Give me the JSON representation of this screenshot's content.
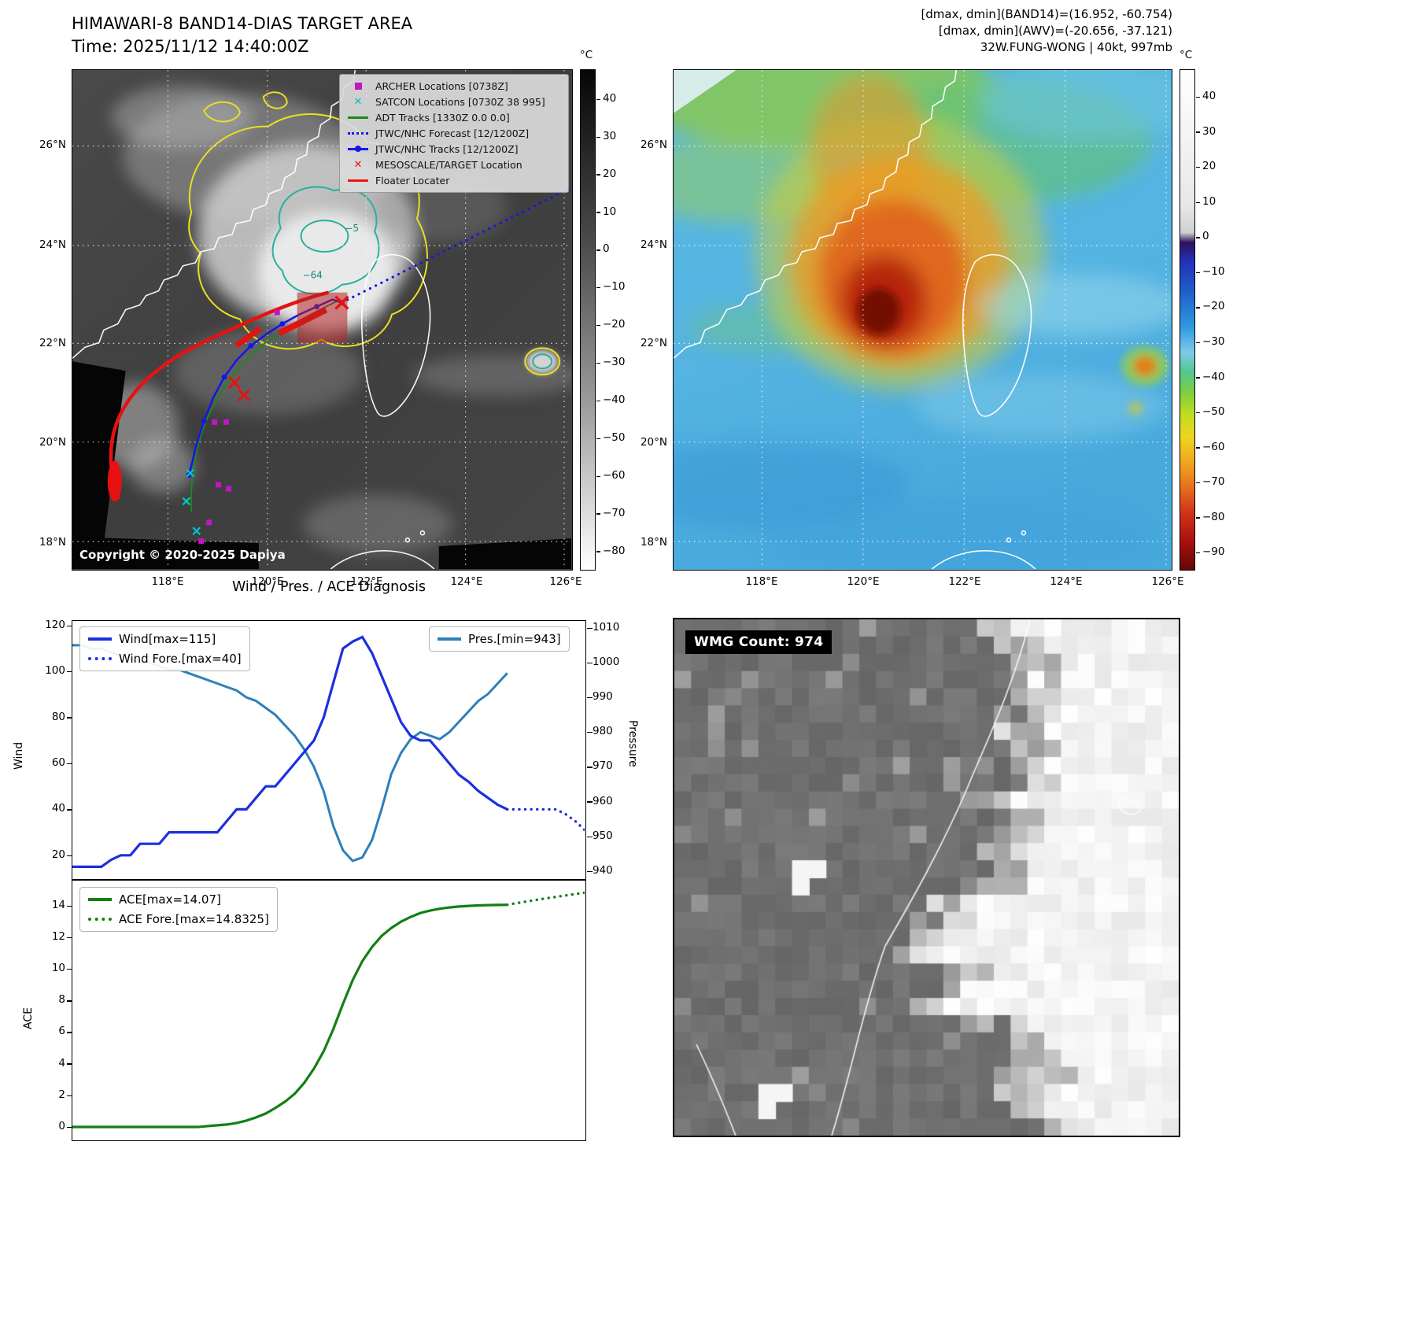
{
  "header": {
    "left_title": "HIMAWARI-8 BAND14-DIAS TARGET AREA",
    "left_subtitle": "Time: 2025/11/12 14:40:00Z",
    "right_line1": "[dmax, dmin](BAND14)=(16.952, -60.754)",
    "right_line2": "[dmax, dmin](AWV)=(-20.656, -37.121)",
    "right_line3": "32W.FUNG-WONG | 40kt, 997mb"
  },
  "band14_panel": {
    "legend": [
      {
        "label": "ARCHER Locations [0738Z]",
        "marker": "square",
        "color": "#c316c3"
      },
      {
        "label": "SATCON Locations [0730Z 38 995]",
        "marker": "x",
        "color": "#00bcbc"
      },
      {
        "label": "ADT Tracks [1330Z 0.0 0.0]",
        "marker": "line",
        "color": "#1a8a1a"
      },
      {
        "label": "JTWC/NHC Forecast [12/1200Z]",
        "marker": "dotted",
        "color": "#1515e8"
      },
      {
        "label": "JTWC/NHC Tracks [12/1200Z]",
        "marker": "line-dot",
        "color": "#1515e8"
      },
      {
        "label": "MESOSCALE/TARGET Location",
        "marker": "x",
        "color": "#e81515"
      },
      {
        "label": "Floater Locater",
        "marker": "line",
        "color": "#e81515"
      }
    ],
    "copyright": "Copyright © 2020-2025 Dapiya",
    "contour_label_1": "−64",
    "contour_label_2": "−5",
    "lat_ticks": [
      "26°N",
      "24°N",
      "22°N",
      "20°N",
      "18°N"
    ],
    "lon_ticks": [
      "118°E",
      "120°E",
      "122°E",
      "124°E",
      "126°E"
    ],
    "colorbar": {
      "unit": "°C",
      "range": [
        48,
        -85
      ],
      "ticks": [
        40,
        30,
        20,
        10,
        0,
        -10,
        -20,
        -30,
        -40,
        -50,
        -60,
        -70,
        -80
      ],
      "stops": [
        [
          "#060606",
          0
        ],
        [
          "#4a4a4a",
          0.34
        ],
        [
          "#9c9c9c",
          0.67
        ],
        [
          "#ffffff",
          1
        ]
      ]
    }
  },
  "awv_panel": {
    "lat_ticks": [
      "26°N",
      "24°N",
      "22°N",
      "20°N",
      "18°N"
    ],
    "lon_ticks": [
      "118°E",
      "120°E",
      "122°E",
      "124°E",
      "126°E"
    ],
    "colorbar": {
      "unit": "°C",
      "range": [
        48,
        -95
      ],
      "ticks": [
        40,
        30,
        20,
        10,
        0,
        -10,
        -20,
        -30,
        -40,
        -50,
        -60,
        -70,
        -80,
        -90
      ],
      "stops": [
        [
          "#ffffff",
          0
        ],
        [
          "#e8e8e8",
          0.27
        ],
        [
          "#d0d0d0",
          0.325
        ],
        [
          "#2e1060",
          0.345
        ],
        [
          "#2233bb",
          0.385
        ],
        [
          "#1f64cc",
          0.45
        ],
        [
          "#2f9ade",
          0.515
        ],
        [
          "#7ecbe9",
          0.565
        ],
        [
          "#52c68c",
          0.605
        ],
        [
          "#7ccf3f",
          0.645
        ],
        [
          "#c2dd20",
          0.69
        ],
        [
          "#eed51e",
          0.735
        ],
        [
          "#f0a61e",
          0.785
        ],
        [
          "#e5701c",
          0.835
        ],
        [
          "#d23418",
          0.885
        ],
        [
          "#a60f0f",
          0.945
        ],
        [
          "#640707",
          1
        ]
      ]
    }
  },
  "wmg_panel": {
    "count_label": "WMG Count: 974"
  },
  "chart_data": [
    {
      "type": "line",
      "title": "Wind / Pres. / ACE Diagnosis",
      "left_axis": {
        "label": "Wind",
        "ticks": [
          20,
          40,
          60,
          80,
          100,
          120
        ],
        "range": [
          10,
          122
        ]
      },
      "right_axis": {
        "label": "Pressure",
        "ticks": [
          940,
          950,
          960,
          970,
          980,
          990,
          1000,
          1010
        ],
        "range": [
          938,
          1012
        ]
      },
      "legend_position": "upper-left and upper-right",
      "series": [
        {
          "name": "Wind[max=115]",
          "axis": "left",
          "style": "solid",
          "color": "#1c2fe0",
          "values": [
            15,
            15,
            15,
            15,
            18,
            20,
            20,
            25,
            25,
            25,
            30,
            30,
            30,
            30,
            30,
            30,
            35,
            40,
            40,
            45,
            50,
            50,
            55,
            60,
            65,
            70,
            80,
            95,
            110,
            113,
            115,
            108,
            98,
            88,
            78,
            72,
            70,
            70,
            65,
            60,
            55,
            52,
            48,
            45,
            42,
            40
          ]
        },
        {
          "name": "Wind Fore.[max=40]",
          "axis": "left",
          "style": "dotted",
          "color": "#1c2fe0",
          "values": [
            40,
            40,
            40,
            40,
            40,
            40,
            38,
            35,
            31
          ]
        },
        {
          "name": "Pres.[min=943]",
          "axis": "right",
          "style": "solid",
          "color": "#2e7fb8",
          "values": [
            1005,
            1005,
            1004,
            1004,
            1003,
            1002,
            1001,
            1000,
            1000,
            999,
            998,
            998,
            997,
            996,
            995,
            994,
            993,
            992,
            990,
            989,
            987,
            985,
            982,
            979,
            975,
            970,
            963,
            953,
            946,
            943,
            944,
            949,
            958,
            968,
            974,
            978,
            980,
            979,
            978,
            980,
            983,
            986,
            989,
            991,
            994,
            997
          ]
        }
      ]
    },
    {
      "type": "line",
      "left_axis": {
        "label": "ACE",
        "ticks": [
          0,
          2,
          4,
          6,
          8,
          10,
          12,
          14
        ],
        "range": [
          -0.8,
          15.6
        ]
      },
      "legend_position": "upper-left",
      "series": [
        {
          "name": "ACE[max=14.07]",
          "style": "solid",
          "color": "#128012",
          "values": [
            0,
            0,
            0,
            0,
            0,
            0,
            0,
            0,
            0,
            0,
            0,
            0,
            0,
            0,
            0.05,
            0.1,
            0.15,
            0.25,
            0.4,
            0.6,
            0.85,
            1.2,
            1.6,
            2.1,
            2.8,
            3.7,
            4.8,
            6.2,
            7.8,
            9.3,
            10.5,
            11.4,
            12.1,
            12.6,
            13.0,
            13.3,
            13.55,
            13.7,
            13.82,
            13.9,
            13.96,
            14.0,
            14.03,
            14.05,
            14.06,
            14.07
          ]
        },
        {
          "name": "ACE Fore.[max=14.8325]",
          "style": "dotted",
          "color": "#128012",
          "values": [
            14.07,
            14.18,
            14.28,
            14.38,
            14.48,
            14.57,
            14.66,
            14.75,
            14.8325
          ]
        }
      ]
    }
  ]
}
